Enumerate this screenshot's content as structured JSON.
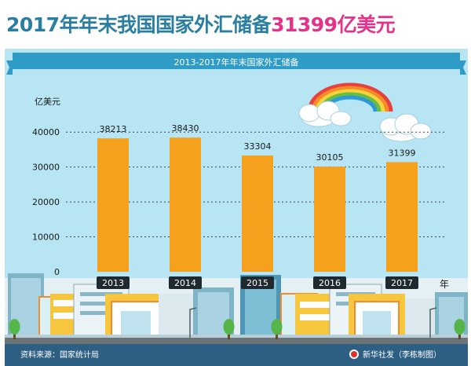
{
  "headline": {
    "main": "2017年年末我国国家外汇储备",
    "highlight": "31399亿美元"
  },
  "ribbon_title": "2013-2017年年末国家外汇储备",
  "footer": {
    "source": "资料来源：国家统计局",
    "credit": "新华社发（李栋制图）"
  },
  "colors": {
    "headline": "#2a7ea1",
    "highlight": "#e4318a",
    "sky": "#b7e5f3",
    "bar": "#f5a11e",
    "ribbon": "#2f9cc8",
    "footer": "#2d5f83"
  },
  "icons": [
    "rainbow",
    "cloud",
    "city-skyline",
    "tree",
    "lamp-post",
    "xinhua-logo"
  ],
  "chart_data": {
    "type": "bar",
    "title": "2013-2017年年末国家外汇储备",
    "xlabel": "年",
    "ylabel": "亿美元",
    "categories": [
      "2013",
      "2014",
      "2015",
      "2016",
      "2017"
    ],
    "values": [
      38213,
      38430,
      33304,
      30105,
      31399
    ],
    "data_labels": [
      "38213",
      "38430",
      "33304",
      "30105",
      "31399"
    ],
    "yticks": [
      "0",
      "10000",
      "20000",
      "30000",
      "40000"
    ],
    "ylim": [
      0,
      45000
    ],
    "grid": true,
    "legend": "none"
  }
}
